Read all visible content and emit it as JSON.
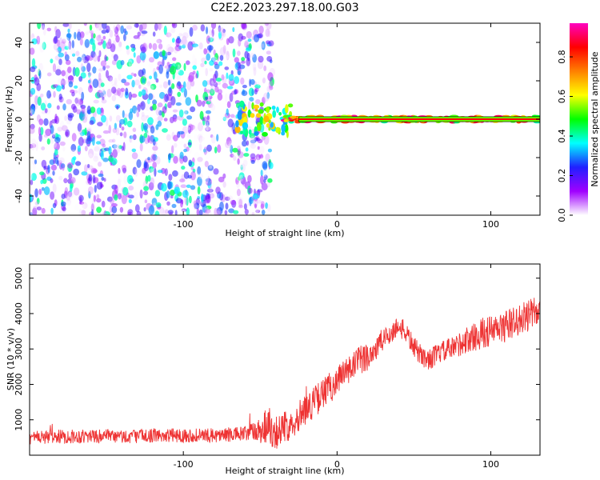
{
  "figure_title": "C2E2.2023.297.18.00.G03",
  "chart_data": [
    {
      "type": "heatmap",
      "title": "",
      "xlabel": "Height of straight line (km)",
      "ylabel": "Frequency (Hz)",
      "xlim": [
        -200,
        132
      ],
      "ylim": [
        -50,
        50
      ],
      "xticks": [
        -100,
        0,
        100
      ],
      "yticks": [
        -40,
        -20,
        0,
        20,
        40
      ],
      "grid": false,
      "description_regions": [
        {
          "x_range": [
            -200,
            -42
          ],
          "freq_range": [
            -50,
            50
          ],
          "amplitude_range": [
            0.0,
            0.45
          ]
        },
        {
          "x_range": [
            -65,
            -30
          ],
          "freq_range": [
            -8,
            8
          ],
          "amplitude_range": [
            0.3,
            0.7
          ]
        },
        {
          "x_range": [
            -35,
            132
          ],
          "freq_range": [
            -1.5,
            1.5
          ],
          "amplitude_range": [
            0.4,
            0.95
          ]
        }
      ],
      "colorbar": {
        "label": "Normalized spectral amplitude",
        "ticks": [
          0.0,
          0.2,
          0.4,
          0.6,
          0.8
        ],
        "range": [
          0,
          0.97
        ],
        "colors": [
          "#ffffff",
          "#a000ff",
          "#2020ff",
          "#00ffff",
          "#00ff00",
          "#ffff00",
          "#ff8000",
          "#ff0000",
          "#ff00c0"
        ]
      }
    },
    {
      "type": "line",
      "title": "",
      "xlabel": "Height of straight line (km)",
      "ylabel": "SNR (10 * v/v)",
      "xlim": [
        -200,
        132
      ],
      "ylim": [
        0,
        5400
      ],
      "xticks": [
        -100,
        0,
        100
      ],
      "yticks": [
        1000,
        2000,
        3000,
        4000,
        5000
      ],
      "grid": false,
      "series": [
        {
          "color": "#ee3333",
          "x": [
            -200,
            -180,
            -160,
            -140,
            -120,
            -100,
            -80,
            -60,
            -50,
            -45,
            -40,
            -35,
            -30,
            -25,
            -20,
            -15,
            -10,
            -5,
            0,
            5,
            10,
            15,
            20,
            25,
            30,
            35,
            40,
            45,
            50,
            55,
            60,
            65,
            70,
            75,
            80,
            85,
            90,
            95,
            100,
            105,
            110,
            115,
            120,
            125,
            132
          ],
          "values": [
            500,
            520,
            540,
            520,
            560,
            560,
            560,
            600,
            700,
            900,
            650,
            750,
            900,
            1100,
            1300,
            1500,
            1700,
            1900,
            2100,
            2300,
            2500,
            2650,
            2800,
            3000,
            3250,
            3450,
            3650,
            3450,
            3050,
            2800,
            2700,
            2850,
            2950,
            3000,
            3150,
            3250,
            3350,
            3450,
            3500,
            3550,
            3650,
            3750,
            3850,
            3950,
            4100
          ],
          "noise_amplitude": [
            200,
            200,
            200,
            200,
            200,
            200,
            200,
            220,
            400,
            600,
            500,
            450,
            450,
            450,
            450,
            450,
            450,
            450,
            450,
            450,
            450,
            450,
            400,
            400,
            350,
            300,
            300,
            300,
            300,
            300,
            300,
            300,
            300,
            350,
            350,
            400,
            400,
            450,
            450,
            450,
            450,
            450,
            450,
            450,
            450
          ]
        }
      ]
    }
  ]
}
